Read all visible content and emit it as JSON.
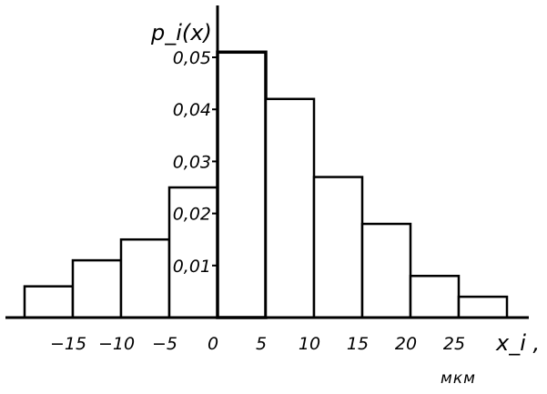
{
  "chart_data": {
    "type": "bar",
    "subtype": "histogram",
    "bin_edges": [
      -20,
      -15,
      -10,
      -5,
      0,
      5,
      10,
      15,
      20,
      25,
      30
    ],
    "values": [
      0.006,
      0.011,
      0.015,
      0.025,
      0.051,
      0.042,
      0.027,
      0.018,
      0.008,
      0.004
    ],
    "ylabel": "p_i(x)",
    "xlabel": "x_i ,",
    "xunit": "мкм",
    "yticks": [
      {
        "value": 0.01,
        "label": "0,01"
      },
      {
        "value": 0.02,
        "label": "0,02"
      },
      {
        "value": 0.03,
        "label": "0,03"
      },
      {
        "value": 0.04,
        "label": "0,04"
      },
      {
        "value": 0.05,
        "label": "0,05"
      }
    ],
    "xticks": [
      {
        "value": -15,
        "label": "−15"
      },
      {
        "value": -10,
        "label": "−10"
      },
      {
        "value": -5,
        "label": "−5"
      },
      {
        "value": 0,
        "label": "0"
      },
      {
        "value": 5,
        "label": "5"
      },
      {
        "value": 10,
        "label": "10"
      },
      {
        "value": 15,
        "label": "15"
      },
      {
        "value": 20,
        "label": "20"
      },
      {
        "value": 25,
        "label": "25"
      }
    ],
    "xlim": [
      -22,
      30
    ],
    "ylim": [
      0,
      0.061
    ],
    "grid": false,
    "legend": "none",
    "bar_edge_color": "#000000",
    "bar_fill_color": "#ffffff"
  }
}
